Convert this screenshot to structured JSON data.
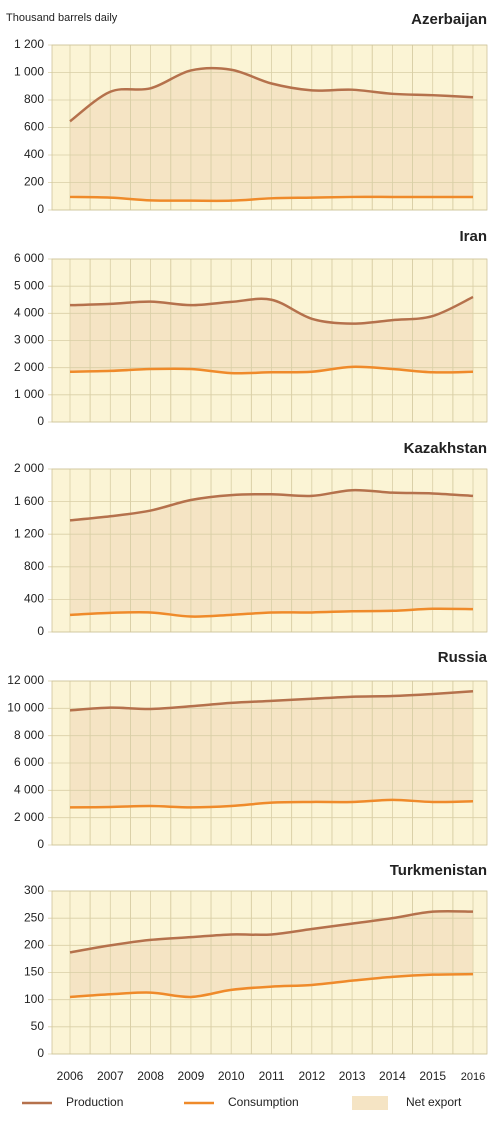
{
  "chart_data": [
    {
      "type": "line",
      "title": "Azerbaijan",
      "y_axis_label": "Thousand barrels daily",
      "ylim": [
        0,
        1200
      ],
      "yticks": [
        0,
        200,
        400,
        600,
        800,
        {
          "value": 1000,
          "label": "1 000"
        },
        {
          "value": 1200,
          "label": "1 200"
        }
      ],
      "series": [
        {
          "color": "#b5714c",
          "values": [
            645,
            860,
            885,
            1015,
            1020,
            920,
            870,
            875,
            845,
            835,
            820
          ]
        },
        {
          "color": "#ef8a2a",
          "values": [
            95,
            90,
            70,
            68,
            68,
            85,
            90,
            95,
            95,
            95,
            95
          ]
        }
      ]
    },
    {
      "type": "line",
      "title": "Iran",
      "ylim": [
        0,
        6000
      ],
      "yticks": [
        0,
        {
          "value": 1000,
          "label": "1 000"
        },
        {
          "value": 2000,
          "label": "2 000"
        },
        {
          "value": 3000,
          "label": "3 000"
        },
        {
          "value": 4000,
          "label": "4 000"
        },
        {
          "value": 5000,
          "label": "5 000"
        },
        {
          "value": 6000,
          "label": "6 000"
        }
      ],
      "series": [
        {
          "color": "#b5714c",
          "values": [
            4300,
            4350,
            4430,
            4300,
            4420,
            4500,
            3800,
            3620,
            3750,
            3900,
            4600
          ]
        },
        {
          "color": "#ef8a2a",
          "values": [
            1850,
            1880,
            1950,
            1950,
            1800,
            1830,
            1850,
            2030,
            1950,
            1830,
            1850
          ]
        }
      ]
    },
    {
      "type": "line",
      "title": "Kazakhstan",
      "ylim": [
        0,
        2000
      ],
      "yticks": [
        0,
        400,
        800,
        {
          "value": 1200,
          "label": "1 200"
        },
        {
          "value": 1600,
          "label": "1 600"
        },
        {
          "value": 2000,
          "label": "2 000"
        }
      ],
      "series": [
        {
          "color": "#b5714c",
          "values": [
            1370,
            1420,
            1490,
            1620,
            1680,
            1690,
            1670,
            1740,
            1710,
            1700,
            1670
          ]
        },
        {
          "color": "#ef8a2a",
          "values": [
            210,
            235,
            240,
            190,
            210,
            240,
            240,
            255,
            260,
            285,
            280
          ]
        }
      ]
    },
    {
      "type": "line",
      "title": "Russia",
      "ylim": [
        0,
        12000
      ],
      "yticks": [
        0,
        {
          "value": 2000,
          "label": "2 000"
        },
        {
          "value": 4000,
          "label": "4 000"
        },
        {
          "value": 6000,
          "label": "6 000"
        },
        {
          "value": 8000,
          "label": "8 000"
        },
        {
          "value": 10000,
          "label": "10 000"
        },
        {
          "value": 12000,
          "label": "12 000"
        }
      ],
      "series": [
        {
          "color": "#b5714c",
          "values": [
            9850,
            10050,
            9950,
            10150,
            10400,
            10550,
            10700,
            10850,
            10900,
            11050,
            11250
          ]
        },
        {
          "color": "#ef8a2a",
          "values": [
            2750,
            2780,
            2850,
            2750,
            2850,
            3100,
            3150,
            3150,
            3300,
            3150,
            3200
          ]
        }
      ]
    },
    {
      "type": "line",
      "title": "Turkmenistan",
      "categories": [
        "2006",
        "2007",
        "2008",
        "2009",
        "2010",
        "2011",
        "2012",
        "2013",
        "2014",
        "2015",
        "2016"
      ],
      "ylim": [
        0,
        300
      ],
      "yticks": [
        0,
        50,
        100,
        150,
        200,
        250,
        300
      ],
      "fill_label": "Net export",
      "fill_color": "#f5e4c4",
      "series": [
        {
          "name": "Production",
          "color": "#b5714c",
          "values": [
            187,
            200,
            210,
            215,
            220,
            220,
            230,
            240,
            250,
            262,
            262
          ]
        },
        {
          "name": "Consumption",
          "color": "#ef8a2a",
          "values": [
            105,
            110,
            113,
            105,
            118,
            124,
            127,
            135,
            142,
            146,
            147
          ]
        }
      ]
    }
  ]
}
